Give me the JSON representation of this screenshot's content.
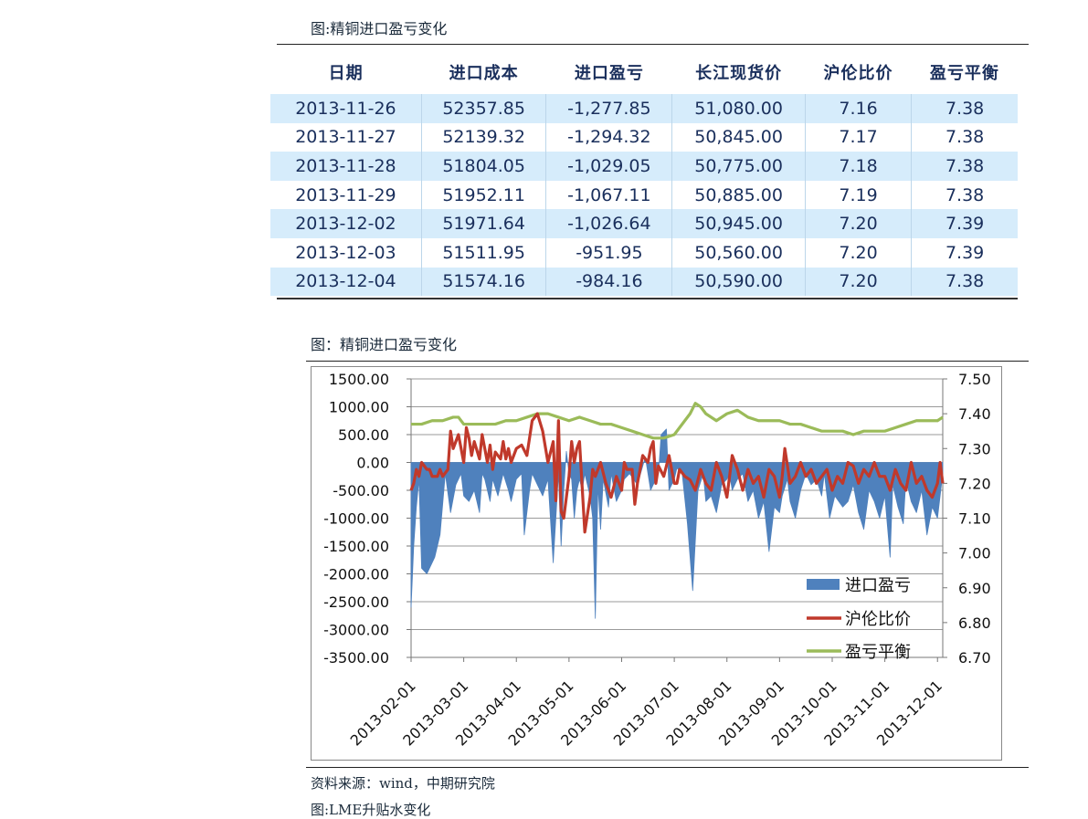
{
  "captions": {
    "table_title": "图:精铜进口盈亏变化",
    "chart_title": "图：精铜进口盈亏变化",
    "source": "资料来源：wind，中期研究院",
    "next_title": "图:LME升贴水变化"
  },
  "table": {
    "headers": [
      "日期",
      "进口成本",
      "进口盈亏",
      "长江现货价",
      "沪伦比价",
      "盈亏平衡"
    ],
    "rows": [
      [
        "2013-11-26",
        "52357.85",
        "-1,277.85",
        "51,080.00",
        "7.16",
        "7.38"
      ],
      [
        "2013-11-27",
        "52139.32",
        "-1,294.32",
        "50,845.00",
        "7.17",
        "7.38"
      ],
      [
        "2013-11-28",
        "51804.05",
        "-1,029.05",
        "50,775.00",
        "7.18",
        "7.38"
      ],
      [
        "2013-11-29",
        "51952.11",
        "-1,067.11",
        "50,885.00",
        "7.19",
        "7.38"
      ],
      [
        "2013-12-02",
        "51971.64",
        "-1,026.64",
        "50,945.00",
        "7.20",
        "7.39"
      ],
      [
        "2013-12-03",
        "51511.95",
        "-951.95",
        "50,560.00",
        "7.20",
        "7.39"
      ],
      [
        "2013-12-04",
        "51574.16",
        "-984.16",
        "50,590.00",
        "7.20",
        "7.38"
      ]
    ]
  },
  "chart_data": {
    "type": "area",
    "x_ticks": [
      "2013-02-01",
      "2013-03-01",
      "2013-04-01",
      "2013-05-01",
      "2013-06-01",
      "2013-07-01",
      "2013-08-01",
      "2013-09-01",
      "2013-10-01",
      "2013-11-01",
      "2013-12-01"
    ],
    "y_left_ticks": [
      "1500.00",
      "1000.00",
      "500.00",
      "0.00",
      "-500.00",
      "-1000.00",
      "-1500.00",
      "-2000.00",
      "-2500.00",
      "-3000.00",
      "-3500.00"
    ],
    "y_right_ticks": [
      "7.50",
      "7.40",
      "7.30",
      "7.20",
      "7.10",
      "7.00",
      "6.90",
      "6.80",
      "6.70"
    ],
    "ylim_left": [
      -3500,
      1500
    ],
    "ylim_right": [
      6.7,
      7.5
    ],
    "xlim": [
      0,
      10.1
    ],
    "legend_position": "bottom-right",
    "colors": {
      "area": "#4f81bd",
      "ratio": "#c0392b",
      "balance": "#9bbb59",
      "grid": "#9a9a9a"
    },
    "series": [
      {
        "name": "进口盈亏",
        "axis": "left",
        "style": "area",
        "x": [
          0,
          0.05,
          0.1,
          0.15,
          0.2,
          0.3,
          0.45,
          0.55,
          0.65,
          0.75,
          0.85,
          0.95,
          1.0,
          1.1,
          1.2,
          1.3,
          1.35,
          1.4,
          1.5,
          1.55,
          1.65,
          1.75,
          1.85,
          1.9,
          2.0,
          2.1,
          2.15,
          2.25,
          2.3,
          2.4,
          2.5,
          2.6,
          2.7,
          2.8,
          2.85,
          2.9,
          2.95,
          3.0,
          3.05,
          3.1,
          3.15,
          3.2,
          3.25,
          3.3,
          3.4,
          3.45,
          3.5,
          3.55,
          3.6,
          3.65,
          3.75,
          3.8,
          3.9,
          4.0,
          4.05,
          4.15,
          4.3,
          4.45,
          4.55,
          4.7,
          4.75,
          4.85,
          4.9,
          5.0,
          5.05,
          5.15,
          5.25,
          5.35,
          5.45,
          5.55,
          5.6,
          5.7,
          5.8,
          5.9,
          6.0,
          6.05,
          6.1,
          6.2,
          6.3,
          6.4,
          6.5,
          6.6,
          6.7,
          6.8,
          6.9,
          7.0,
          7.05,
          7.15,
          7.2,
          7.3,
          7.4,
          7.5,
          7.6,
          7.7,
          7.8,
          7.85,
          7.95,
          8.05,
          8.2,
          8.3,
          8.4,
          8.5,
          8.6,
          8.7,
          8.8,
          8.9,
          9.0,
          9.1,
          9.15,
          9.25,
          9.35,
          9.4,
          9.5,
          9.6,
          9.7,
          9.8,
          9.9,
          10.0,
          10.1
        ],
        "y": [
          -2600,
          -1500,
          -800,
          -300,
          -1900,
          -2000,
          -1700,
          -1300,
          -200,
          -900,
          -400,
          -200,
          -600,
          -700,
          -500,
          -900,
          -200,
          -300,
          -700,
          -300,
          -600,
          -200,
          -500,
          -700,
          -300,
          -200,
          -1300,
          -500,
          -200,
          -400,
          -600,
          -300,
          -1800,
          -200,
          -1500,
          -500,
          200,
          -200,
          -300,
          -1000,
          -500,
          -300,
          -500,
          -200,
          -600,
          -1000,
          -2800,
          -400,
          -1200,
          -300,
          -800,
          -200,
          -700,
          -500,
          -300,
          -200,
          -400,
          100,
          -500,
          -200,
          500,
          600,
          -500,
          -300,
          -100,
          -200,
          -1100,
          -2300,
          -500,
          -200,
          -700,
          -600,
          -900,
          -400,
          -300,
          -200,
          -500,
          -300,
          -200,
          -700,
          -500,
          -1000,
          -700,
          -1600,
          -800,
          -900,
          -600,
          -300,
          -700,
          -1000,
          -500,
          -200,
          -400,
          -300,
          -600,
          -200,
          -1000,
          -600,
          -800,
          -700,
          -400,
          -900,
          -1200,
          -500,
          -700,
          -1000,
          -600,
          -1700,
          -400,
          -800,
          -1100,
          -300,
          -700,
          -900,
          -500,
          -1300,
          -800,
          -1000,
          -200
        ],
        "x_labels": "x in month steps from 2013-02-01"
      },
      {
        "name": "沪伦比价",
        "axis": "right",
        "style": "line",
        "x": [
          0,
          0.05,
          0.1,
          0.15,
          0.2,
          0.3,
          0.35,
          0.4,
          0.5,
          0.55,
          0.6,
          0.7,
          0.75,
          0.8,
          0.9,
          1.0,
          1.05,
          1.1,
          1.15,
          1.2,
          1.3,
          1.35,
          1.4,
          1.45,
          1.5,
          1.55,
          1.6,
          1.7,
          1.75,
          1.8,
          1.85,
          1.9,
          2.0,
          2.1,
          2.2,
          2.3,
          2.4,
          2.5,
          2.6,
          2.7,
          2.75,
          2.8,
          2.85,
          2.9,
          3.0,
          3.05,
          3.1,
          3.15,
          3.2,
          3.3,
          3.4,
          3.45,
          3.5,
          3.55,
          3.6,
          3.7,
          3.8,
          3.9,
          4.0,
          4.05,
          4.1,
          4.2,
          4.25,
          4.3,
          4.4,
          4.5,
          4.55,
          4.6,
          4.65,
          4.7,
          4.8,
          4.9,
          5.0,
          5.05,
          5.1,
          5.2,
          5.3,
          5.4,
          5.5,
          5.6,
          5.7,
          5.8,
          5.9,
          6.0,
          6.1,
          6.2,
          6.3,
          6.4,
          6.5,
          6.6,
          6.7,
          6.8,
          6.9,
          7.0,
          7.05,
          7.1,
          7.2,
          7.3,
          7.4,
          7.5,
          7.6,
          7.7,
          7.8,
          7.9,
          8.0,
          8.1,
          8.2,
          8.3,
          8.4,
          8.5,
          8.6,
          8.7,
          8.8,
          8.9,
          9.0,
          9.1,
          9.2,
          9.3,
          9.4,
          9.5,
          9.6,
          9.7,
          9.8,
          9.9,
          10.0,
          10.05,
          10.1
        ],
        "y": [
          7.18,
          7.2,
          7.24,
          7.22,
          7.26,
          7.24,
          7.24,
          7.22,
          7.22,
          7.24,
          7.22,
          7.24,
          7.35,
          7.3,
          7.34,
          7.26,
          7.36,
          7.33,
          7.28,
          7.32,
          7.27,
          7.34,
          7.3,
          7.26,
          7.31,
          7.24,
          7.29,
          7.27,
          7.32,
          7.27,
          7.3,
          7.26,
          7.3,
          7.31,
          7.28,
          7.38,
          7.4,
          7.35,
          7.26,
          7.32,
          7.15,
          7.38,
          7.12,
          7.1,
          7.22,
          7.32,
          7.26,
          7.3,
          7.32,
          7.06,
          7.16,
          7.24,
          7.22,
          7.24,
          7.26,
          7.2,
          7.16,
          7.22,
          7.18,
          7.26,
          7.24,
          7.24,
          7.14,
          7.2,
          7.28,
          7.26,
          7.3,
          7.32,
          7.2,
          7.25,
          7.22,
          7.28,
          7.2,
          7.2,
          7.24,
          7.22,
          7.21,
          7.18,
          7.24,
          7.2,
          7.18,
          7.26,
          7.22,
          7.16,
          7.28,
          7.24,
          7.18,
          7.24,
          7.2,
          7.22,
          7.16,
          7.24,
          7.22,
          7.16,
          7.22,
          7.3,
          7.2,
          7.22,
          7.26,
          7.22,
          7.24,
          7.2,
          7.22,
          7.24,
          7.18,
          7.22,
          7.2,
          7.26,
          7.25,
          7.2,
          7.24,
          7.22,
          7.26,
          7.22,
          7.22,
          7.18,
          7.24,
          7.2,
          7.18,
          7.26,
          7.2,
          7.22,
          7.18,
          7.16,
          7.2,
          7.26,
          7.2
        ],
        "x_labels": "x in month steps from 2013-02-01"
      },
      {
        "name": "盈亏平衡",
        "axis": "right",
        "style": "line",
        "x": [
          0,
          0.2,
          0.4,
          0.6,
          0.8,
          0.9,
          1.0,
          1.2,
          1.4,
          1.6,
          1.8,
          2.0,
          2.2,
          2.4,
          2.6,
          2.8,
          3.0,
          3.2,
          3.4,
          3.6,
          3.8,
          4.0,
          4.2,
          4.4,
          4.6,
          4.8,
          5.0,
          5.1,
          5.2,
          5.3,
          5.4,
          5.5,
          5.6,
          5.8,
          6.0,
          6.2,
          6.4,
          6.6,
          6.8,
          7.0,
          7.2,
          7.4,
          7.6,
          7.8,
          8.0,
          8.2,
          8.4,
          8.6,
          8.8,
          9.0,
          9.2,
          9.4,
          9.6,
          9.8,
          10.0,
          10.1
        ],
        "y": [
          7.37,
          7.37,
          7.38,
          7.38,
          7.39,
          7.39,
          7.37,
          7.37,
          7.37,
          7.37,
          7.38,
          7.38,
          7.39,
          7.4,
          7.4,
          7.39,
          7.38,
          7.39,
          7.38,
          7.37,
          7.37,
          7.36,
          7.35,
          7.34,
          7.33,
          7.33,
          7.34,
          7.36,
          7.38,
          7.4,
          7.43,
          7.42,
          7.4,
          7.38,
          7.4,
          7.41,
          7.39,
          7.38,
          7.38,
          7.38,
          7.37,
          7.37,
          7.36,
          7.35,
          7.35,
          7.35,
          7.34,
          7.35,
          7.35,
          7.35,
          7.36,
          7.37,
          7.38,
          7.38,
          7.38,
          7.39
        ],
        "x_labels": "x in month steps from 2013-02-01"
      }
    ]
  }
}
